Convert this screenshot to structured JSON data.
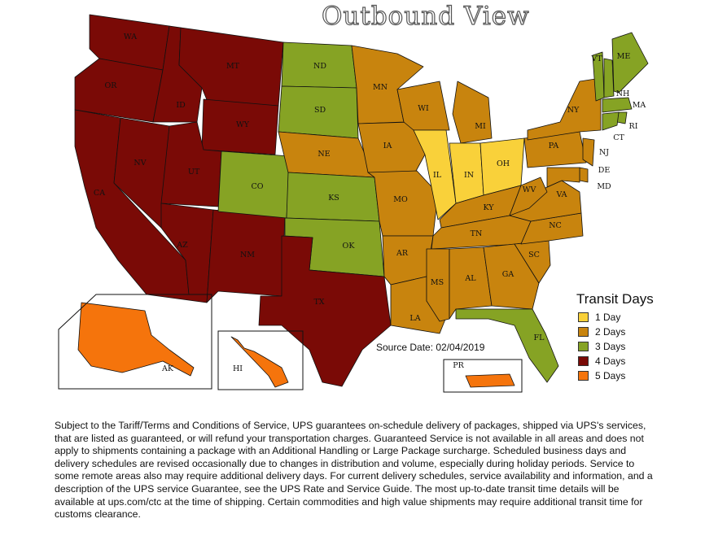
{
  "title": "Outbound View",
  "colors": {
    "1 Day": "#f9d13a",
    "2 Days": "#c8840e",
    "3 Days": "#86a324",
    "4 Days": "#7a0a06",
    "5 Days": "#f5740c"
  },
  "legend": {
    "title": "Transit Days",
    "items": [
      {
        "label": "1 Day",
        "key": "1 Day"
      },
      {
        "label": "2 Days",
        "key": "2 Days"
      },
      {
        "label": "3 Days",
        "key": "3 Days"
      },
      {
        "label": "4 Days",
        "key": "4 Days"
      },
      {
        "label": "5 Days",
        "key": "5 Days"
      }
    ]
  },
  "source_date": "Source Date: 02/04/2019",
  "states": [
    {
      "code": "WA",
      "transit": "4 Days"
    },
    {
      "code": "OR",
      "transit": "4 Days"
    },
    {
      "code": "CA",
      "transit": "4 Days"
    },
    {
      "code": "NV",
      "transit": "4 Days"
    },
    {
      "code": "ID",
      "transit": "4 Days"
    },
    {
      "code": "MT",
      "transit": "4 Days"
    },
    {
      "code": "WY",
      "transit": "4 Days"
    },
    {
      "code": "UT",
      "transit": "4 Days"
    },
    {
      "code": "AZ",
      "transit": "4 Days"
    },
    {
      "code": "NM",
      "transit": "4 Days"
    },
    {
      "code": "CO",
      "transit": "3 Days"
    },
    {
      "code": "ND",
      "transit": "3 Days"
    },
    {
      "code": "SD",
      "transit": "3 Days"
    },
    {
      "code": "NE",
      "transit": "2 Days"
    },
    {
      "code": "KS",
      "transit": "3 Days"
    },
    {
      "code": "OK",
      "transit": "3 Days"
    },
    {
      "code": "TX",
      "transit": "4 Days"
    },
    {
      "code": "MN",
      "transit": "2 Days"
    },
    {
      "code": "IA",
      "transit": "2 Days"
    },
    {
      "code": "MO",
      "transit": "2 Days"
    },
    {
      "code": "AR",
      "transit": "2 Days"
    },
    {
      "code": "LA",
      "transit": "2 Days"
    },
    {
      "code": "WI",
      "transit": "2 Days"
    },
    {
      "code": "IL",
      "transit": "1 Day"
    },
    {
      "code": "MI",
      "transit": "2 Days"
    },
    {
      "code": "IN",
      "transit": "1 Day"
    },
    {
      "code": "OH",
      "transit": "1 Day"
    },
    {
      "code": "KY",
      "transit": "2 Days"
    },
    {
      "code": "TN",
      "transit": "2 Days"
    },
    {
      "code": "MS",
      "transit": "2 Days"
    },
    {
      "code": "AL",
      "transit": "2 Days"
    },
    {
      "code": "GA",
      "transit": "2 Days"
    },
    {
      "code": "FL",
      "transit": "3 Days"
    },
    {
      "code": "SC",
      "transit": "2 Days"
    },
    {
      "code": "NC",
      "transit": "2 Days"
    },
    {
      "code": "VA",
      "transit": "2 Days"
    },
    {
      "code": "WV",
      "transit": "2 Days"
    },
    {
      "code": "PA",
      "transit": "2 Days"
    },
    {
      "code": "NY",
      "transit": "2 Days"
    },
    {
      "code": "VT",
      "transit": "3 Days"
    },
    {
      "code": "NH",
      "transit": "3 Days"
    },
    {
      "code": "ME",
      "transit": "3 Days"
    },
    {
      "code": "MA",
      "transit": "3 Days"
    },
    {
      "code": "RI",
      "transit": "3 Days"
    },
    {
      "code": "CT",
      "transit": "3 Days"
    },
    {
      "code": "NJ",
      "transit": "2 Days"
    },
    {
      "code": "DE",
      "transit": "2 Days"
    },
    {
      "code": "MD",
      "transit": "2 Days"
    },
    {
      "code": "AK",
      "transit": "5 Days"
    },
    {
      "code": "HI",
      "transit": "5 Days"
    },
    {
      "code": "PR",
      "transit": "5 Days"
    }
  ],
  "disclaimer": "Subject to the Tariff/Terms and Conditions of Service, UPS guarantees on-schedule delivery of packages, shipped via UPS's services, that are listed as guaranteed, or will refund your transportation charges. Guaranteed Service is not available in all areas and does not apply to shipments containing a package with an Additional Handling or Large Package surcharge. Scheduled business days and delivery schedules are revised occasionally due to changes in distribution and volume, especially during holiday periods. Service to some remote areas also may require additional delivery days. For current delivery schedules, service availability and information, and a description of the UPS service Guarantee, see the UPS Rate and Service Guide. The most up-to-date transit time details will be available at ups.com/ctc at the time of shipping. Certain commodities and high value shipments may require additional transit time for customs clearance."
}
